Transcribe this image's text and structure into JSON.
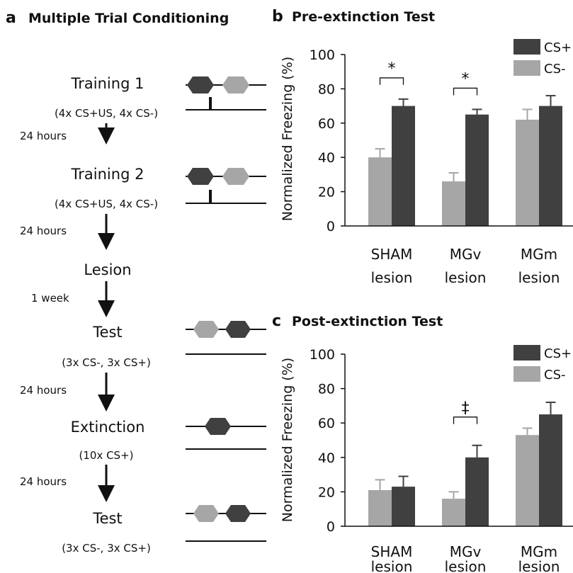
{
  "panel_a": {
    "letter": "a",
    "title": "Multiple Trial Conditioning",
    "steps": [
      {
        "label": "Training 1",
        "detail": "(4x CS+US, 4x CS-)"
      },
      {
        "label": "Training 2",
        "detail": "(4x CS+US, 4x CS-)"
      },
      {
        "label": "Lesion",
        "detail": ""
      },
      {
        "label": "Test",
        "detail": "(3x CS-, 3x CS+)"
      },
      {
        "label": "Extinction",
        "detail": "(10x CS+)"
      },
      {
        "label": "Test",
        "detail": "(3x CS-, 3x CS+)"
      }
    ],
    "intervals": [
      "24 hours",
      "24 hours",
      "1 week",
      "24 hours",
      "24 hours"
    ],
    "colors": {
      "cs_plus": "#404040",
      "cs_minus": "#a6a6a6"
    }
  },
  "panel_b": {
    "letter": "b"
  },
  "panel_c": {
    "letter": "c"
  },
  "chart_data": [
    {
      "type": "bar",
      "title": "Pre-extinction Test",
      "ylabel": "Normalized  Freezing (%)",
      "xlabel": "",
      "categories": [
        [
          "SHAM",
          "lesion"
        ],
        [
          "MGv",
          "lesion"
        ],
        [
          "MGm",
          "lesion"
        ]
      ],
      "series": [
        {
          "name": "CS-",
          "color": "#a6a6a6",
          "values": [
            40,
            26,
            62
          ],
          "errors": [
            5,
            5,
            6
          ]
        },
        {
          "name": "CS+",
          "color": "#404040",
          "values": [
            70,
            65,
            70
          ],
          "errors": [
            4,
            3,
            6
          ]
        }
      ],
      "ylim": [
        0,
        100
      ],
      "yticks": [
        0,
        20,
        40,
        60,
        80,
        100
      ],
      "legend": "top-right",
      "grid": false,
      "annotations": [
        {
          "text": "*",
          "category_index": 0
        },
        {
          "text": "*",
          "category_index": 1
        }
      ]
    },
    {
      "type": "bar",
      "title": "Post-extinction Test",
      "ylabel": "Normalized  Freezing (%)",
      "xlabel": "",
      "categories": [
        [
          "SHAM",
          "lesion"
        ],
        [
          "MGv",
          "lesion"
        ],
        [
          "MGm",
          "lesion"
        ]
      ],
      "series": [
        {
          "name": "CS-",
          "color": "#a6a6a6",
          "values": [
            21,
            16,
            53
          ],
          "errors": [
            6,
            4,
            4
          ]
        },
        {
          "name": "CS+",
          "color": "#404040",
          "values": [
            23,
            40,
            65
          ],
          "errors": [
            6,
            7,
            7
          ]
        }
      ],
      "ylim": [
        0,
        100
      ],
      "yticks": [
        0,
        20,
        40,
        60,
        80,
        100
      ],
      "legend": "top-right",
      "grid": false,
      "annotations": [
        {
          "text": "‡",
          "category_index": 1
        }
      ]
    }
  ]
}
